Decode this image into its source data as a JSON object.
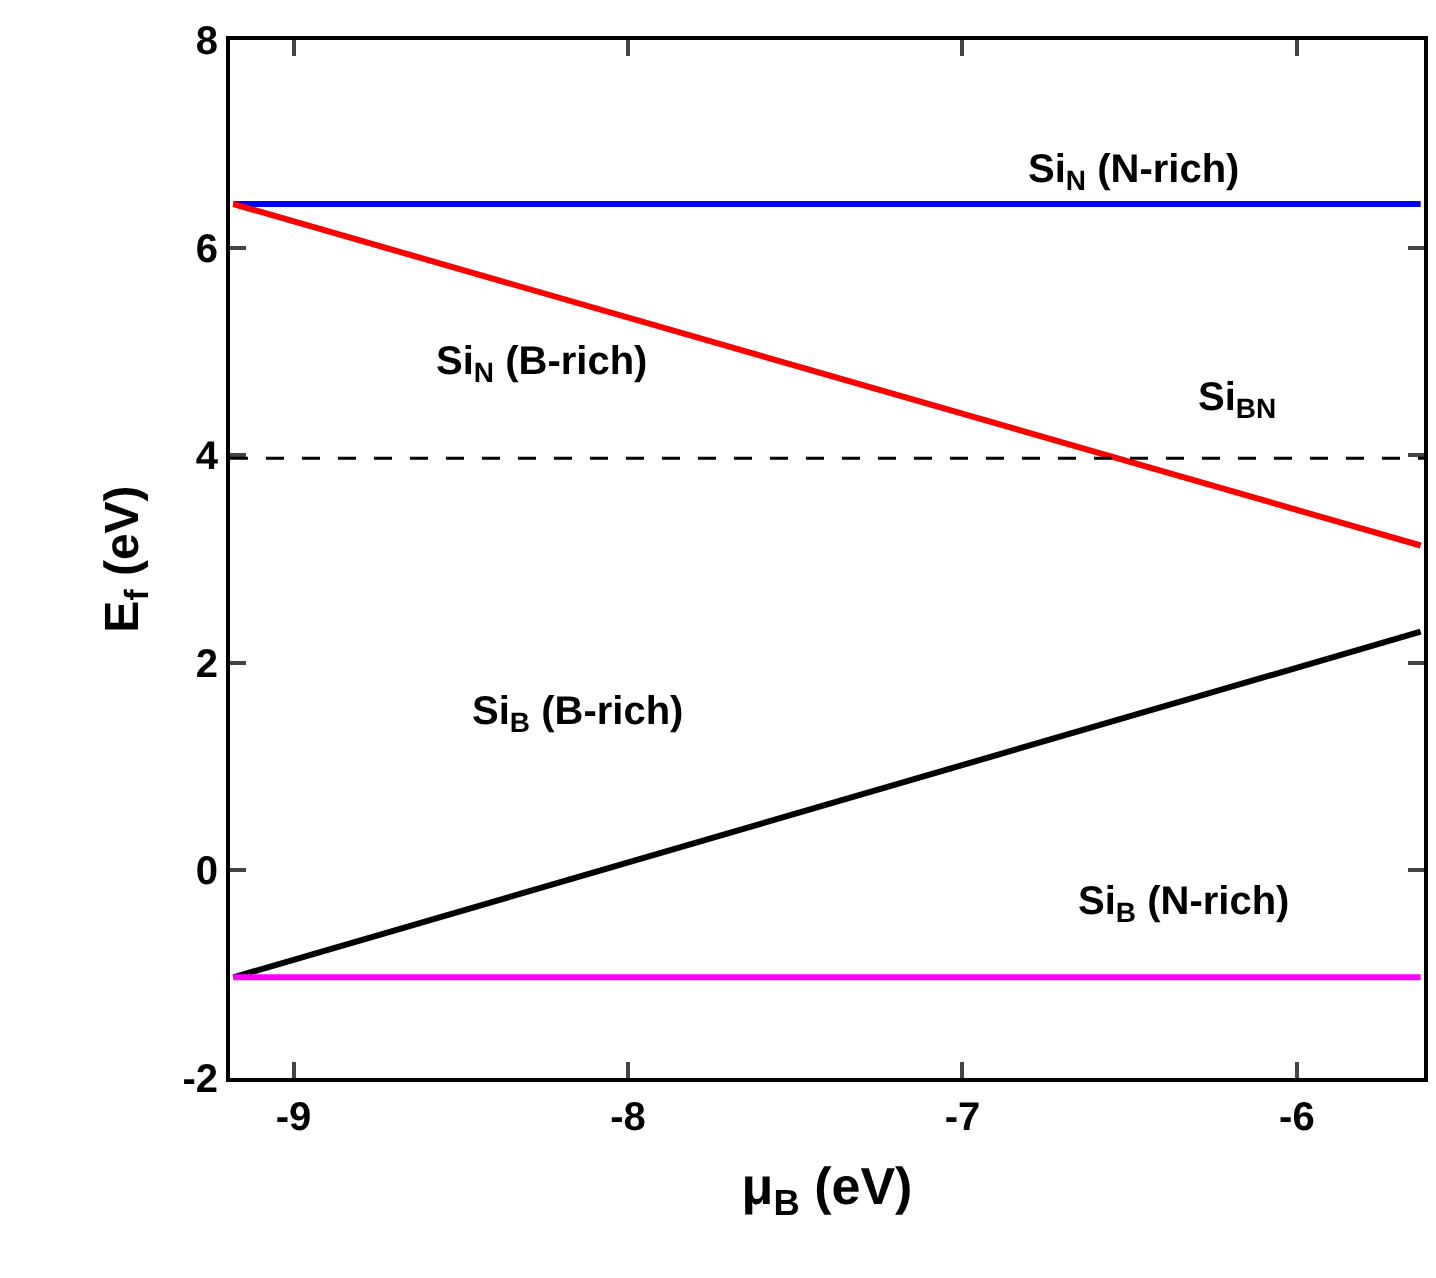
{
  "chart_data": {
    "type": "line",
    "xlabel": "μ$_{B}$ (eV)",
    "ylabel": "E$_{f}$ (eV)",
    "x": [
      -9.18,
      -5.63
    ],
    "xlim": [
      -9.19,
      -5.62
    ],
    "xticks": [
      -9,
      -8,
      -7,
      -6
    ],
    "ylim": [
      -2,
      8
    ],
    "yticks": [
      -2,
      0,
      2,
      4,
      6,
      8
    ],
    "legend": false,
    "marker": "none",
    "line_style": "solid",
    "series": [
      {
        "name": "Si$_{N}$ (N-rich)",
        "color": "#0000ff",
        "values": [
          6.42,
          6.42
        ]
      },
      {
        "name": "Si$_{N}$ (B-rich)",
        "color": "#ff0000",
        "values": [
          6.42,
          3.13
        ]
      },
      {
        "name": "Si$_{B}$ (B-rich)",
        "color": "#000000",
        "values": [
          -1.03,
          2.3
        ]
      },
      {
        "name": "Si$_{B}$ (N-rich)",
        "color": "#ff00ff",
        "values": [
          -1.03,
          -1.03
        ]
      }
    ],
    "ref_lines": [
      {
        "axis": "y",
        "value": 3.97,
        "label": "Si$_{BN}$",
        "color": "#000000",
        "line_style": "dashed"
      }
    ]
  }
}
